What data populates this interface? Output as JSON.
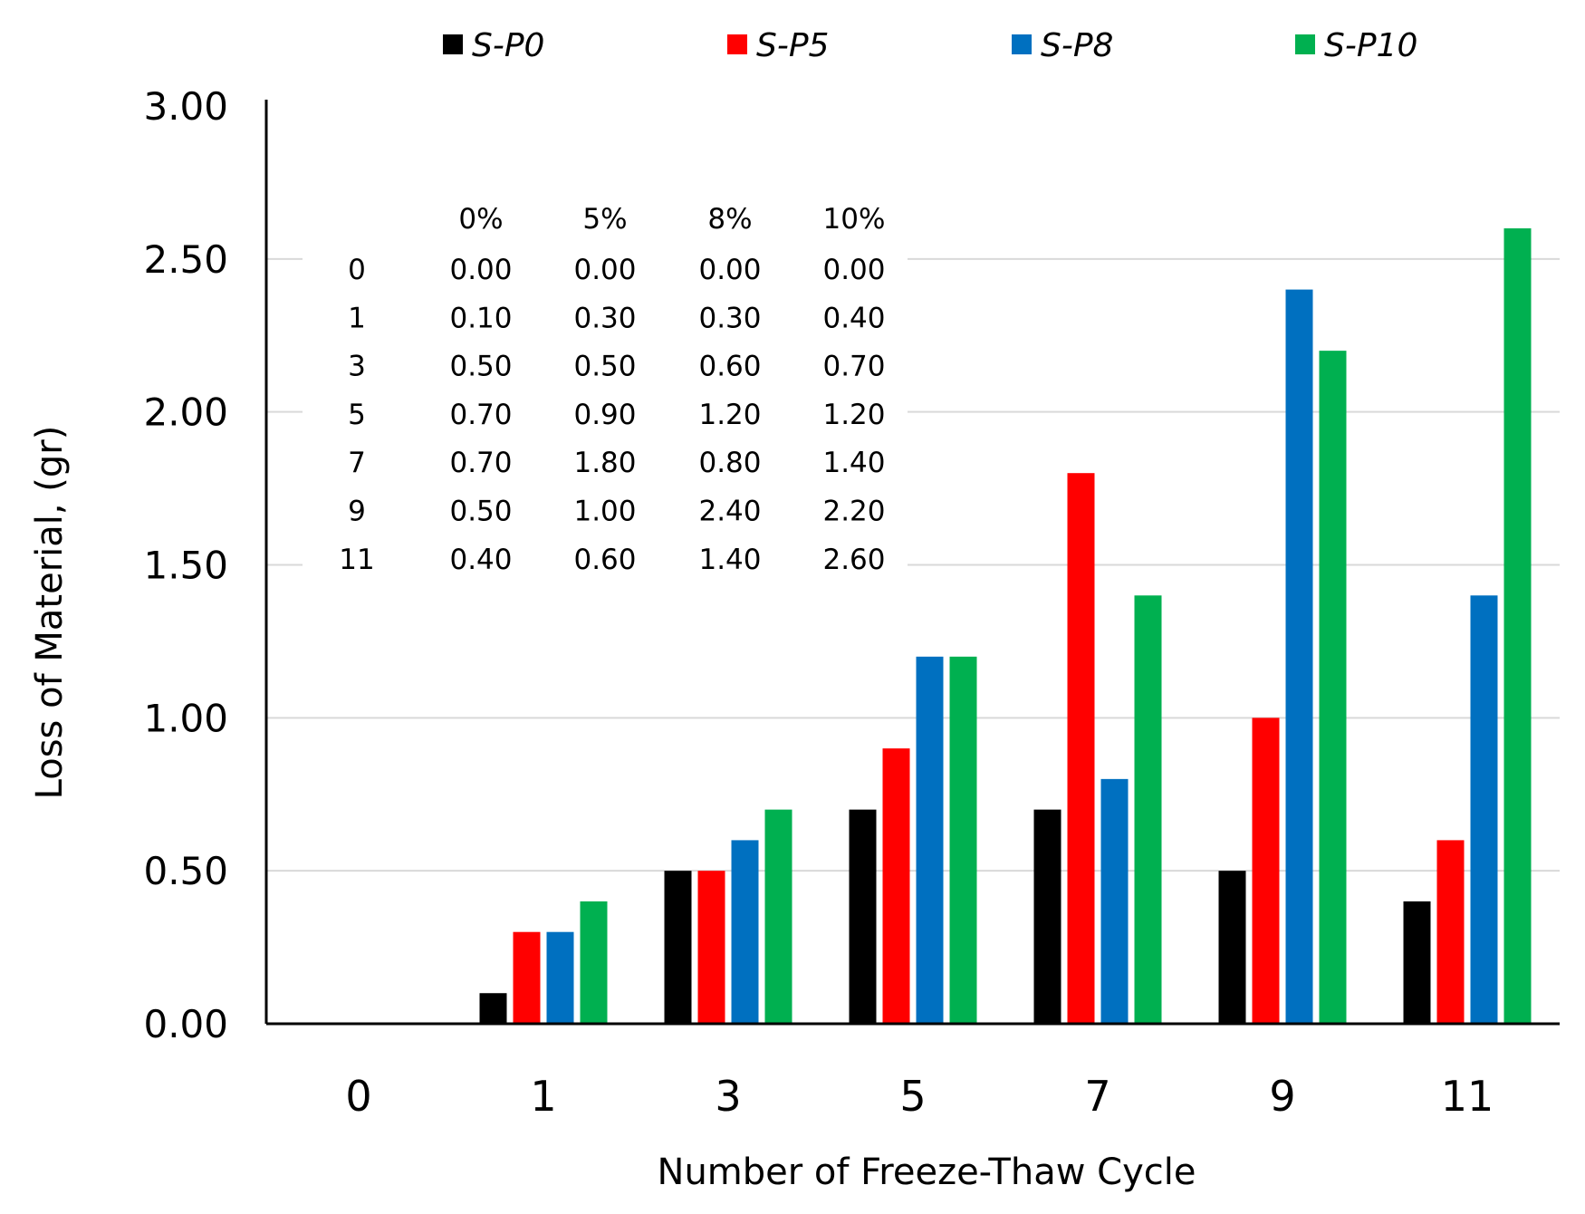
{
  "chart_data": {
    "type": "bar",
    "title": "",
    "xlabel": "Number of Freeze-Thaw Cycle",
    "ylabel": "Loss of Material, (gr)",
    "categories": [
      "0",
      "1",
      "3",
      "5",
      "7",
      "9",
      "11"
    ],
    "ylim": [
      0,
      3
    ],
    "yticks": [
      "0.00",
      "0.50",
      "1.00",
      "1.50",
      "2.00",
      "2.50",
      "3.00"
    ],
    "ytick_values": [
      0,
      0.5,
      1,
      1.5,
      2,
      2.5,
      3
    ],
    "grid": true,
    "legend_position": "top",
    "series": [
      {
        "name": "S-P0",
        "color": "#000000",
        "values": [
          0.0,
          0.1,
          0.5,
          0.7,
          0.7,
          0.5,
          0.4
        ]
      },
      {
        "name": "S-P5",
        "color": "#ff0000",
        "values": [
          0.0,
          0.3,
          0.5,
          0.9,
          1.8,
          1.0,
          0.6
        ]
      },
      {
        "name": "S-P8",
        "color": "#0070c0",
        "values": [
          0.0,
          0.3,
          0.6,
          1.2,
          0.8,
          2.4,
          1.4
        ]
      },
      {
        "name": "S-P10",
        "color": "#00b050",
        "values": [
          0.0,
          0.4,
          0.7,
          1.2,
          1.4,
          2.2,
          2.6
        ]
      }
    ],
    "data_table": {
      "headers": [
        "",
        "0%",
        "5%",
        "8%",
        "10%"
      ],
      "rows": [
        [
          "0",
          "0.00",
          "0.00",
          "0.00",
          "0.00"
        ],
        [
          "1",
          "0.10",
          "0.30",
          "0.30",
          "0.40"
        ],
        [
          "3",
          "0.50",
          "0.50",
          "0.60",
          "0.70"
        ],
        [
          "5",
          "0.70",
          "0.90",
          "1.20",
          "1.20"
        ],
        [
          "7",
          "0.70",
          "1.80",
          "0.80",
          "1.40"
        ],
        [
          "9",
          "0.50",
          "1.00",
          "2.40",
          "2.20"
        ],
        [
          "11",
          "0.40",
          "0.60",
          "1.40",
          "2.60"
        ]
      ]
    }
  }
}
